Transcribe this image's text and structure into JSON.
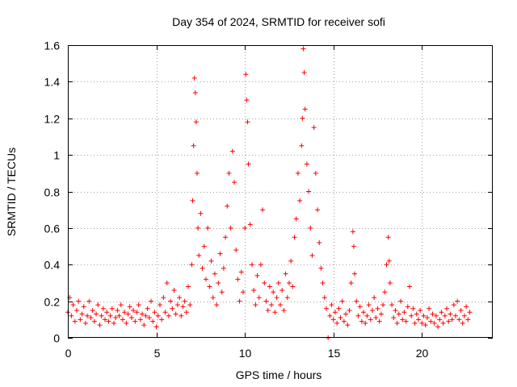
{
  "chart_data": {
    "type": "scatter",
    "title": "Day 354 of 2024, SRMTID for receiver sofi",
    "xlabel": "GPS time / hours",
    "ylabel": "SRMTID / TECUs",
    "xlim": [
      0,
      24
    ],
    "ylim": [
      0,
      1.6
    ],
    "xticks": [
      0,
      5,
      10,
      15,
      20
    ],
    "xtick_labels": [
      "0",
      "5",
      "10",
      "15",
      "20"
    ],
    "yticks": [
      0,
      0.2,
      0.4,
      0.6,
      0.8,
      1,
      1.2,
      1.4,
      1.6
    ],
    "ytick_labels": [
      "0",
      "0.2",
      "0.4",
      "0.6",
      "0.8",
      "1",
      "1.2",
      "1.4",
      "1.6"
    ],
    "grid": true,
    "marker": "plus",
    "color": "#ff0000",
    "series": [
      {
        "name": "SRMTID",
        "points": [
          [
            0.0,
            0.14
          ],
          [
            0.1,
            0.22
          ],
          [
            0.2,
            0.12
          ],
          [
            0.3,
            0.18
          ],
          [
            0.4,
            0.09
          ],
          [
            0.5,
            0.15
          ],
          [
            0.6,
            0.2
          ],
          [
            0.7,
            0.1
          ],
          [
            0.8,
            0.13
          ],
          [
            0.9,
            0.17
          ],
          [
            1.0,
            0.08
          ],
          [
            1.1,
            0.12
          ],
          [
            1.2,
            0.2
          ],
          [
            1.3,
            0.11
          ],
          [
            1.4,
            0.15
          ],
          [
            1.5,
            0.09
          ],
          [
            1.6,
            0.13
          ],
          [
            1.7,
            0.18
          ],
          [
            1.8,
            0.07
          ],
          [
            1.9,
            0.12
          ],
          [
            2.0,
            0.16
          ],
          [
            2.1,
            0.1
          ],
          [
            2.2,
            0.14
          ],
          [
            2.3,
            0.09
          ],
          [
            2.4,
            0.12
          ],
          [
            2.5,
            0.16
          ],
          [
            2.6,
            0.08
          ],
          [
            2.7,
            0.11
          ],
          [
            2.8,
            0.15
          ],
          [
            2.9,
            0.12
          ],
          [
            3.0,
            0.18
          ],
          [
            3.1,
            0.1
          ],
          [
            3.2,
            0.14
          ],
          [
            3.3,
            0.08
          ],
          [
            3.4,
            0.13
          ],
          [
            3.5,
            0.17
          ],
          [
            3.6,
            0.11
          ],
          [
            3.7,
            0.15
          ],
          [
            3.8,
            0.09
          ],
          [
            3.9,
            0.14
          ],
          [
            4.0,
            0.18
          ],
          [
            4.1,
            0.1
          ],
          [
            4.2,
            0.13
          ],
          [
            4.3,
            0.07
          ],
          [
            4.4,
            0.12
          ],
          [
            4.5,
            0.16
          ],
          [
            4.6,
            0.11
          ],
          [
            4.7,
            0.2
          ],
          [
            4.8,
            0.09
          ],
          [
            4.9,
            0.14
          ],
          [
            5.0,
            0.06
          ],
          [
            5.1,
            0.12
          ],
          [
            5.2,
            0.18
          ],
          [
            5.3,
            0.1
          ],
          [
            5.4,
            0.22
          ],
          [
            5.5,
            0.14
          ],
          [
            5.6,
            0.3
          ],
          [
            5.7,
            0.12
          ],
          [
            5.8,
            0.2
          ],
          [
            5.9,
            0.16
          ],
          [
            6.0,
            0.26
          ],
          [
            6.1,
            0.13
          ],
          [
            6.2,
            0.18
          ],
          [
            6.3,
            0.22
          ],
          [
            6.4,
            0.12
          ],
          [
            6.5,
            0.17
          ],
          [
            6.6,
            0.2
          ],
          [
            6.7,
            0.14
          ],
          [
            6.8,
            0.28
          ],
          [
            6.9,
            0.18
          ],
          [
            7.0,
            0.4
          ],
          [
            7.05,
            0.75
          ],
          [
            7.1,
            1.05
          ],
          [
            7.15,
            1.42
          ],
          [
            7.2,
            1.34
          ],
          [
            7.25,
            1.18
          ],
          [
            7.3,
            0.9
          ],
          [
            7.35,
            0.6
          ],
          [
            7.4,
            0.45
          ],
          [
            7.5,
            0.68
          ],
          [
            7.6,
            0.38
          ],
          [
            7.7,
            0.5
          ],
          [
            7.8,
            0.32
          ],
          [
            7.9,
            0.6
          ],
          [
            8.0,
            0.28
          ],
          [
            8.1,
            0.42
          ],
          [
            8.2,
            0.22
          ],
          [
            8.3,
            0.35
          ],
          [
            8.4,
            0.18
          ],
          [
            8.5,
            0.3
          ],
          [
            8.6,
            0.46
          ],
          [
            8.7,
            0.25
          ],
          [
            8.8,
            0.38
          ],
          [
            8.9,
            0.55
          ],
          [
            9.0,
            0.72
          ],
          [
            9.1,
            0.9
          ],
          [
            9.2,
            0.6
          ],
          [
            9.3,
            1.02
          ],
          [
            9.4,
            0.85
          ],
          [
            9.5,
            0.48
          ],
          [
            9.6,
            0.32
          ],
          [
            9.7,
            0.2
          ],
          [
            9.8,
            0.36
          ],
          [
            9.9,
            0.25
          ],
          [
            10.0,
            0.6
          ],
          [
            10.05,
            1.44
          ],
          [
            10.1,
            1.3
          ],
          [
            10.15,
            1.18
          ],
          [
            10.2,
            0.95
          ],
          [
            10.3,
            0.62
          ],
          [
            10.4,
            0.4
          ],
          [
            10.5,
            0.26
          ],
          [
            10.6,
            0.18
          ],
          [
            10.7,
            0.34
          ],
          [
            10.8,
            0.22
          ],
          [
            10.9,
            0.4
          ],
          [
            11.0,
            0.7
          ],
          [
            11.1,
            0.3
          ],
          [
            11.2,
            0.2
          ],
          [
            11.3,
            0.15
          ],
          [
            11.4,
            0.28
          ],
          [
            11.5,
            0.18
          ],
          [
            11.6,
            0.25
          ],
          [
            11.7,
            0.14
          ],
          [
            11.8,
            0.22
          ],
          [
            11.9,
            0.3
          ],
          [
            12.0,
            0.18
          ],
          [
            12.1,
            0.26
          ],
          [
            12.2,
            0.15
          ],
          [
            12.3,
            0.35
          ],
          [
            12.4,
            0.22
          ],
          [
            12.5,
            0.3
          ],
          [
            12.6,
            0.42
          ],
          [
            12.7,
            0.28
          ],
          [
            12.8,
            0.55
          ],
          [
            12.9,
            0.65
          ],
          [
            13.0,
            0.9
          ],
          [
            13.1,
            0.75
          ],
          [
            13.2,
            1.05
          ],
          [
            13.25,
            1.2
          ],
          [
            13.3,
            1.58
          ],
          [
            13.35,
            1.45
          ],
          [
            13.4,
            1.25
          ],
          [
            13.5,
            0.95
          ],
          [
            13.6,
            0.8
          ],
          [
            13.7,
            0.6
          ],
          [
            13.8,
            0.45
          ],
          [
            13.9,
            1.15
          ],
          [
            14.0,
            0.9
          ],
          [
            14.1,
            0.7
          ],
          [
            14.2,
            0.52
          ],
          [
            14.3,
            0.38
          ],
          [
            14.4,
            0.3
          ],
          [
            14.5,
            0.22
          ],
          [
            14.6,
            0.16
          ],
          [
            14.7,
            0.0
          ],
          [
            14.8,
            0.12
          ],
          [
            14.9,
            0.18
          ],
          [
            15.0,
            0.1
          ],
          [
            15.1,
            0.14
          ],
          [
            15.2,
            0.08
          ],
          [
            15.3,
            0.16
          ],
          [
            15.4,
            0.11
          ],
          [
            15.5,
            0.2
          ],
          [
            15.6,
            0.09
          ],
          [
            15.7,
            0.13
          ],
          [
            15.8,
            0.07
          ],
          [
            15.9,
            0.15
          ],
          [
            16.0,
            0.3
          ],
          [
            16.1,
            0.58
          ],
          [
            16.15,
            0.5
          ],
          [
            16.2,
            0.35
          ],
          [
            16.3,
            0.2
          ],
          [
            16.4,
            0.12
          ],
          [
            16.5,
            0.17
          ],
          [
            16.6,
            0.09
          ],
          [
            16.7,
            0.14
          ],
          [
            16.8,
            0.08
          ],
          [
            16.9,
            0.12
          ],
          [
            17.0,
            0.18
          ],
          [
            17.1,
            0.1
          ],
          [
            17.2,
            0.15
          ],
          [
            17.3,
            0.22
          ],
          [
            17.4,
            0.11
          ],
          [
            17.5,
            0.16
          ],
          [
            17.6,
            0.09
          ],
          [
            17.7,
            0.13
          ],
          [
            17.8,
            0.18
          ],
          [
            17.9,
            0.25
          ],
          [
            18.0,
            0.4
          ],
          [
            18.1,
            0.55
          ],
          [
            18.15,
            0.42
          ],
          [
            18.2,
            0.3
          ],
          [
            18.3,
            0.18
          ],
          [
            18.4,
            0.11
          ],
          [
            18.5,
            0.15
          ],
          [
            18.6,
            0.08
          ],
          [
            18.7,
            0.13
          ],
          [
            18.8,
            0.2
          ],
          [
            18.9,
            0.1
          ],
          [
            19.0,
            0.14
          ],
          [
            19.1,
            0.09
          ],
          [
            19.2,
            0.17
          ],
          [
            19.3,
            0.28
          ],
          [
            19.4,
            0.12
          ],
          [
            19.5,
            0.16
          ],
          [
            19.6,
            0.08
          ],
          [
            19.7,
            0.13
          ],
          [
            19.8,
            0.1
          ],
          [
            19.9,
            0.15
          ],
          [
            20.0,
            0.08
          ],
          [
            20.1,
            0.12
          ],
          [
            20.2,
            0.07
          ],
          [
            20.3,
            0.11
          ],
          [
            20.4,
            0.16
          ],
          [
            20.5,
            0.09
          ],
          [
            20.6,
            0.13
          ],
          [
            20.7,
            0.08
          ],
          [
            20.8,
            0.12
          ],
          [
            20.9,
            0.06
          ],
          [
            21.0,
            0.1
          ],
          [
            21.1,
            0.14
          ],
          [
            21.2,
            0.08
          ],
          [
            21.3,
            0.12
          ],
          [
            21.4,
            0.16
          ],
          [
            21.5,
            0.09
          ],
          [
            21.6,
            0.13
          ],
          [
            21.7,
            0.1
          ],
          [
            21.8,
            0.18
          ],
          [
            21.9,
            0.12
          ],
          [
            22.0,
            0.2
          ],
          [
            22.1,
            0.1
          ],
          [
            22.2,
            0.15
          ],
          [
            22.3,
            0.08
          ],
          [
            22.4,
            0.12
          ],
          [
            22.5,
            0.17
          ],
          [
            22.6,
            0.1
          ],
          [
            22.7,
            0.14
          ]
        ]
      }
    ]
  }
}
